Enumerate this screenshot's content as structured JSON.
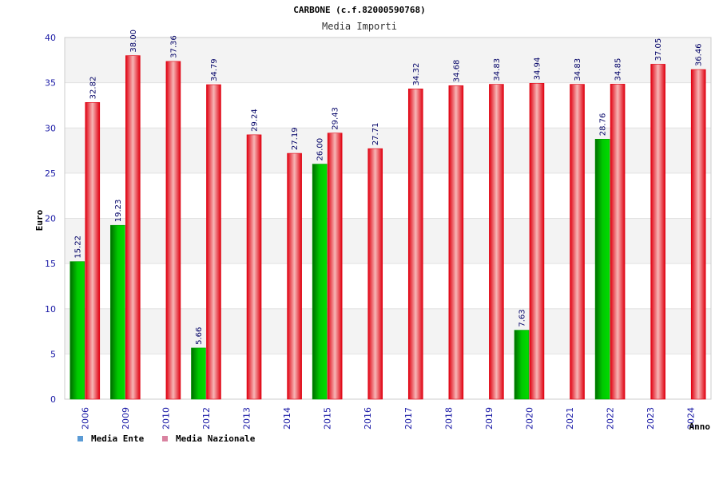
{
  "chart_data": {
    "type": "bar",
    "title": "CARBONE (c.f.82000590768)",
    "subtitle": "Media Importi",
    "xlabel": "Anno",
    "ylabel": "Euro",
    "ylim": [
      0,
      40
    ],
    "yticks": [
      0,
      5,
      10,
      15,
      20,
      25,
      30,
      35,
      40
    ],
    "grid": true,
    "legend_position": "bottom-left",
    "categories": [
      "2006",
      "2009",
      "2010",
      "2012",
      "2013",
      "2014",
      "2015",
      "2016",
      "2017",
      "2018",
      "2019",
      "2020",
      "2021",
      "2022",
      "2023",
      "2024"
    ],
    "series": [
      {
        "name": "Media Ente",
        "color": "#00b800",
        "legend_color": "#5b9bd5",
        "values": [
          15.22,
          19.23,
          null,
          5.66,
          null,
          null,
          26.0,
          null,
          null,
          null,
          null,
          7.63,
          null,
          28.76,
          null,
          null
        ],
        "labels": [
          "15.22",
          "19.23",
          null,
          "5.66",
          null,
          null,
          "26.00",
          null,
          null,
          null,
          null,
          "7.63",
          null,
          "28.76",
          null,
          null
        ]
      },
      {
        "name": "Media Nazionale",
        "color": "#e8101c",
        "legend_color": "#d982a0",
        "values": [
          32.82,
          38.0,
          37.36,
          34.79,
          29.24,
          27.19,
          29.43,
          27.71,
          34.32,
          34.68,
          34.83,
          34.94,
          34.83,
          34.85,
          37.05,
          36.46
        ],
        "labels": [
          "32.82",
          "38.00",
          "37.36",
          "34.79",
          "29.24",
          "27.19",
          "29.43",
          "27.71",
          "34.32",
          "34.68",
          "34.83",
          "34.94",
          "34.83",
          "34.85",
          "37.05",
          "36.46"
        ]
      }
    ]
  }
}
